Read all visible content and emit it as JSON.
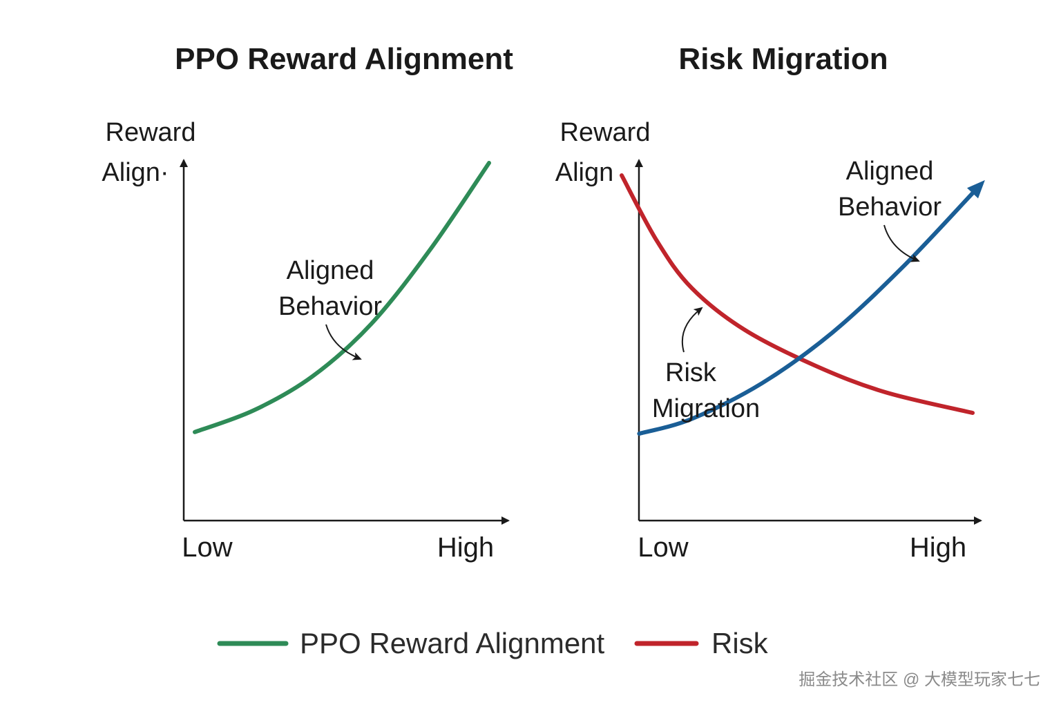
{
  "chart_data": [
    {
      "type": "line",
      "title": "PPO Reward Alignment",
      "ylabel_line1": "Reward",
      "ylabel_line2": "Align·",
      "x_tick_low": "Low",
      "x_tick_high": "High",
      "xlim": [
        0,
        1
      ],
      "ylim": [
        0,
        1
      ],
      "series": [
        {
          "name": "Aligned Behavior",
          "color": "#2e8b57",
          "x": [
            0.0,
            0.2,
            0.4,
            0.6,
            0.8,
            1.0
          ],
          "y": [
            0.13,
            0.2,
            0.31,
            0.48,
            0.72,
            1.0
          ]
        }
      ],
      "annotations": [
        {
          "line1": "Aligned",
          "line2": "Behavior",
          "target_series": 0
        }
      ]
    },
    {
      "type": "line",
      "title": "Risk Migration",
      "ylabel_line1": "Reward",
      "ylabel_line2": "Align",
      "x_tick_low": "Low",
      "x_tick_high": "High",
      "xlim": [
        0,
        1
      ],
      "ylim": [
        0,
        1
      ],
      "series": [
        {
          "name": "Risk Migration",
          "color": "#c0242b",
          "x": [
            0.0,
            0.1,
            0.2,
            0.35,
            0.55,
            0.75,
            1.0
          ],
          "y": [
            1.0,
            0.78,
            0.62,
            0.48,
            0.36,
            0.27,
            0.2
          ]
        },
        {
          "name": "Aligned Behavior",
          "color": "#1a5e96",
          "x": [
            0.05,
            0.2,
            0.4,
            0.6,
            0.8,
            1.0
          ],
          "y": [
            0.13,
            0.18,
            0.3,
            0.47,
            0.69,
            0.94
          ]
        }
      ],
      "annotations": [
        {
          "line1": "Risk",
          "line2": "Migration",
          "target_series": 0
        },
        {
          "line1": "Aligned",
          "line2": "Behavior",
          "target_series": 1
        }
      ]
    }
  ],
  "legend": [
    {
      "label": "PPO Reward Alignment",
      "color": "#2e8b57"
    },
    {
      "label": "Risk",
      "color": "#c0242b"
    }
  ],
  "watermark": "掘金技术社区 @ 大模型玩家七七",
  "axis_color": "#1a1a1a"
}
